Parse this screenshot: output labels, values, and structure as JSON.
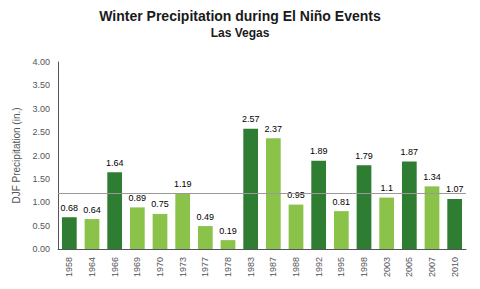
{
  "chart_data": {
    "type": "bar",
    "title": "Winter Precipitation during El Niño Events",
    "subtitle": "Las Vegas",
    "ylabel": "DJF Precipitation (in.)",
    "categories": [
      "1958",
      "1964",
      "1966",
      "1969",
      "1970",
      "1973",
      "1977",
      "1978",
      "1983",
      "1987",
      "1988",
      "1992",
      "1995",
      "1998",
      "2003",
      "2005",
      "2007",
      "2010"
    ],
    "values": [
      0.68,
      0.64,
      1.64,
      0.89,
      0.75,
      1.19,
      0.49,
      0.19,
      2.57,
      2.37,
      0.95,
      1.89,
      0.81,
      1.79,
      1.1,
      1.87,
      1.34,
      1.07
    ],
    "colors": [
      "#2e7d32",
      "#8bc34a",
      "#2e7d32",
      "#8bc34a",
      "#8bc34a",
      "#8bc34a",
      "#8bc34a",
      "#8bc34a",
      "#2e7d32",
      "#8bc34a",
      "#8bc34a",
      "#2e7d32",
      "#8bc34a",
      "#2e7d32",
      "#8bc34a",
      "#2e7d32",
      "#8bc34a",
      "#2e7d32"
    ],
    "reference_line": {
      "value": 1.2,
      "color": "#999999"
    },
    "ylim": [
      0.0,
      4.0
    ],
    "yticks": [
      {
        "value": 0.0,
        "label": "0.00"
      },
      {
        "value": 0.5,
        "label": "0.50"
      },
      {
        "value": 1.0,
        "label": "1.00"
      },
      {
        "value": 1.5,
        "label": "1.50"
      },
      {
        "value": 2.0,
        "label": "2.00"
      },
      {
        "value": 2.5,
        "label": "2.50"
      },
      {
        "value": 3.0,
        "label": "3.00"
      },
      {
        "value": 3.5,
        "label": "3.50"
      },
      {
        "value": 4.0,
        "label": "4.00"
      }
    ],
    "data_labels": true,
    "grid": false
  }
}
